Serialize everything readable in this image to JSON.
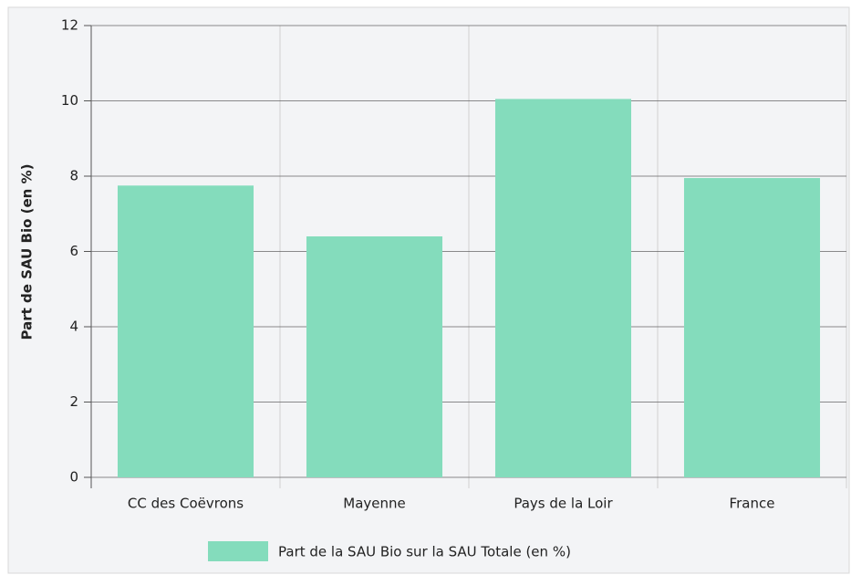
{
  "chart_data": {
    "type": "bar",
    "y_label": "Part de SAU Bio (en %)",
    "categories": [
      "CC des Coëvrons",
      "Mayenne",
      "Pays de la Loir",
      "France"
    ],
    "series": [
      {
        "name": "Part de la SAU Bio sur la SAU Totale (en %)",
        "color": "#84dcbc",
        "values": [
          7.75,
          6.4,
          10.05,
          7.95
        ]
      }
    ],
    "ylim": [
      0,
      12
    ],
    "yticks": [
      0,
      2,
      4,
      6,
      8,
      10,
      12
    ],
    "grid": true,
    "legend": "bottom"
  }
}
